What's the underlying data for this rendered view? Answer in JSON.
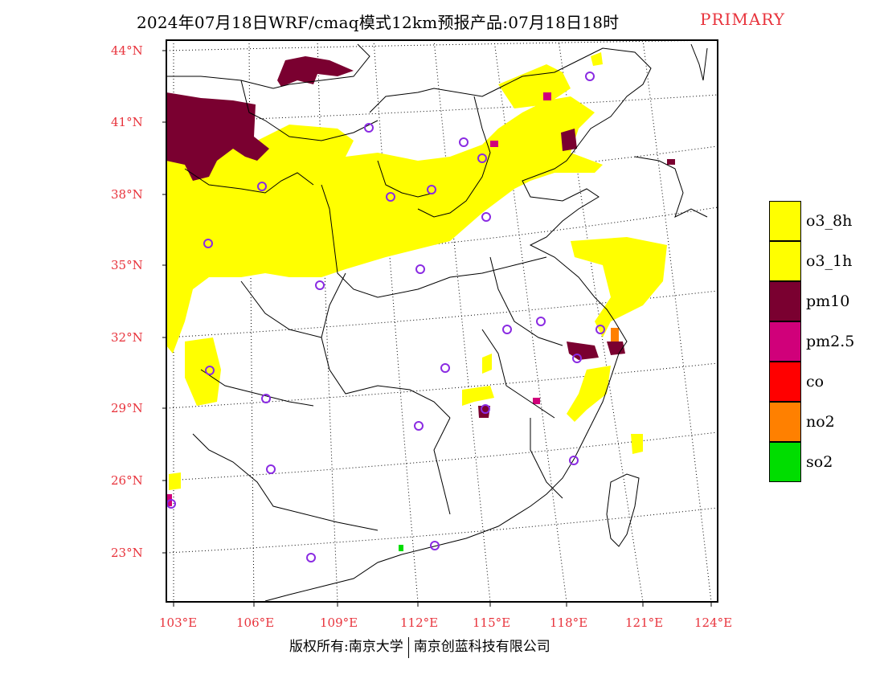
{
  "title": {
    "main": "2024年07月18日WRF/cmaq模式12km预报产品:07月18日18时",
    "tag": "PRIMARY"
  },
  "map": {
    "lat_labels": [
      "44°N",
      "41°N",
      "38°N",
      "35°N",
      "32°N",
      "29°N",
      "26°N",
      "23°N"
    ],
    "lon_labels": [
      "103°E",
      "106°E",
      "109°E",
      "112°E",
      "115°E",
      "118°E",
      "121°E",
      "124°E"
    ],
    "station_marker": "purple-circle-icon",
    "colors": {
      "o3": "#ffff00",
      "pm10": "#7a0030",
      "pm25": "#d0007a",
      "co": "#ff0000",
      "no2": "#ff8000",
      "so2": "#00dd00",
      "station": "#8a2be2",
      "label": "#e8333c"
    }
  },
  "legend": [
    {
      "label": "o3_8h",
      "color": "#ffff00"
    },
    {
      "label": "o3_1h",
      "color": "#ffff00"
    },
    {
      "label": "pm10",
      "color": "#7a0030"
    },
    {
      "label": "pm2.5",
      "color": "#d0007a"
    },
    {
      "label": "co",
      "color": "#ff0000"
    },
    {
      "label": "no2",
      "color": "#ff8000"
    },
    {
      "label": "so2",
      "color": "#00dd00"
    }
  ],
  "footer": {
    "left": "版权所有:南京大学",
    "right": "南京创蓝科技有限公司"
  }
}
